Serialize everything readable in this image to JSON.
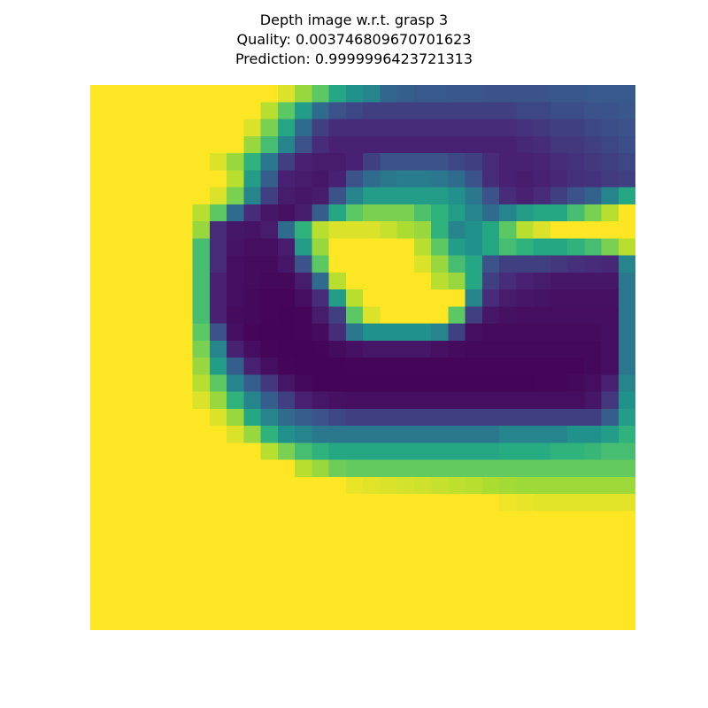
{
  "title": {
    "line1": "Depth image w.r.t. grasp 3",
    "line2": "Quality: 0.003746809670701623",
    "line3": "Prediction: 0.9999996423721313"
  },
  "chart_data": {
    "type": "heatmap",
    "title": "Depth image w.r.t. grasp 3\nQuality: 0.003746809670701623\nPrediction: 0.9999996423721313",
    "colormap": "viridis",
    "axes_visible": false,
    "grid": false,
    "rows": 32,
    "cols": 32,
    "value_scale": "normalized 0 (dark purple) to 1 (yellow), estimated from colors",
    "values": [
      [
        1,
        1,
        1,
        1,
        1,
        1,
        1,
        1,
        1,
        1,
        1,
        0.95,
        0.85,
        0.75,
        0.6,
        0.5,
        0.45,
        0.33,
        0.3,
        0.28,
        0.28,
        0.27,
        0.27,
        0.26,
        0.26,
        0.26,
        0.26,
        0.27,
        0.27,
        0.28,
        0.28,
        0.28
      ],
      [
        1,
        1,
        1,
        1,
        1,
        1,
        1,
        1,
        1,
        1,
        0.9,
        0.75,
        0.55,
        0.35,
        0.25,
        0.22,
        0.2,
        0.2,
        0.2,
        0.2,
        0.2,
        0.2,
        0.2,
        0.2,
        0.2,
        0.22,
        0.22,
        0.24,
        0.24,
        0.25,
        0.26,
        0.27
      ],
      [
        1,
        1,
        1,
        1,
        1,
        1,
        1,
        1,
        1,
        0.95,
        0.8,
        0.6,
        0.35,
        0.2,
        0.15,
        0.15,
        0.15,
        0.15,
        0.15,
        0.15,
        0.15,
        0.15,
        0.15,
        0.15,
        0.15,
        0.17,
        0.18,
        0.2,
        0.2,
        0.22,
        0.24,
        0.25
      ],
      [
        1,
        1,
        1,
        1,
        1,
        1,
        1,
        1,
        1,
        0.85,
        0.7,
        0.45,
        0.25,
        0.15,
        0.12,
        0.12,
        0.12,
        0.12,
        0.12,
        0.12,
        0.12,
        0.12,
        0.12,
        0.12,
        0.12,
        0.14,
        0.15,
        0.18,
        0.18,
        0.2,
        0.22,
        0.24
      ],
      [
        1,
        1,
        1,
        1,
        1,
        1,
        1,
        0.95,
        0.85,
        0.65,
        0.4,
        0.2,
        0.12,
        0.1,
        0.1,
        0.12,
        0.2,
        0.25,
        0.25,
        0.25,
        0.25,
        0.22,
        0.2,
        0.15,
        0.12,
        0.12,
        0.13,
        0.15,
        0.17,
        0.18,
        0.2,
        0.22
      ],
      [
        1,
        1,
        1,
        1,
        1,
        1,
        1,
        1,
        0.9,
        0.55,
        0.3,
        0.12,
        0.1,
        0.08,
        0.12,
        0.25,
        0.35,
        0.4,
        0.42,
        0.42,
        0.4,
        0.35,
        0.25,
        0.15,
        0.12,
        0.1,
        0.12,
        0.14,
        0.16,
        0.17,
        0.19,
        0.2
      ],
      [
        1,
        1,
        1,
        1,
        1,
        1,
        1,
        0.95,
        0.8,
        0.45,
        0.2,
        0.1,
        0.08,
        0.1,
        0.25,
        0.45,
        0.55,
        0.55,
        0.55,
        0.55,
        0.55,
        0.5,
        0.4,
        0.25,
        0.15,
        0.12,
        0.15,
        0.2,
        0.25,
        0.32,
        0.45,
        0.6
      ],
      [
        1,
        1,
        1,
        1,
        1,
        1,
        0.9,
        0.75,
        0.35,
        0.15,
        0.08,
        0.06,
        0.1,
        0.3,
        0.6,
        0.75,
        0.8,
        0.8,
        0.8,
        0.72,
        0.65,
        0.55,
        0.45,
        0.35,
        0.45,
        0.55,
        0.6,
        0.6,
        0.7,
        0.8,
        0.9,
        1
      ],
      [
        1,
        1,
        1,
        1,
        1,
        1,
        0.85,
        0.15,
        0.08,
        0.07,
        0.1,
        0.35,
        0.65,
        0.9,
        0.95,
        0.95,
        0.95,
        0.92,
        0.88,
        0.85,
        0.65,
        0.45,
        0.5,
        0.6,
        0.75,
        0.9,
        0.95,
        1,
        1,
        1,
        1,
        1
      ],
      [
        1,
        1,
        1,
        1,
        1,
        1,
        0.7,
        0.15,
        0.07,
        0.05,
        0.05,
        0.1,
        0.55,
        0.85,
        1,
        1,
        1,
        1,
        1,
        0.9,
        0.75,
        0.55,
        0.5,
        0.6,
        0.7,
        0.65,
        0.6,
        0.6,
        0.65,
        0.7,
        0.8,
        0.9
      ],
      [
        1,
        1,
        1,
        1,
        1,
        1,
        0.7,
        0.15,
        0.05,
        0.04,
        0.04,
        0.08,
        0.25,
        0.75,
        1,
        1,
        1,
        1,
        1,
        0.95,
        0.85,
        0.7,
        0.6,
        0.25,
        0.2,
        0.2,
        0.2,
        0.18,
        0.16,
        0.15,
        0.14,
        0.45
      ],
      [
        1,
        1,
        1,
        1,
        1,
        1,
        0.7,
        0.12,
        0.05,
        0.04,
        0.03,
        0.03,
        0.1,
        0.35,
        0.9,
        1,
        1,
        1,
        1,
        1,
        0.9,
        0.85,
        0.6,
        0.2,
        0.15,
        0.12,
        0.1,
        0.08,
        0.08,
        0.08,
        0.08,
        0.4
      ],
      [
        1,
        1,
        1,
        1,
        1,
        1,
        0.7,
        0.12,
        0.05,
        0.03,
        0.02,
        0.02,
        0.05,
        0.15,
        0.55,
        0.9,
        1,
        1,
        1,
        1,
        1,
        1,
        0.45,
        0.15,
        0.1,
        0.08,
        0.07,
        0.06,
        0.06,
        0.06,
        0.06,
        0.4
      ],
      [
        1,
        1,
        1,
        1,
        1,
        1,
        0.7,
        0.12,
        0.04,
        0.03,
        0.02,
        0.01,
        0.02,
        0.1,
        0.2,
        0.75,
        0.95,
        1,
        1,
        1,
        1,
        0.75,
        0.2,
        0.08,
        0.06,
        0.05,
        0.05,
        0.05,
        0.05,
        0.05,
        0.05,
        0.4
      ],
      [
        1,
        1,
        1,
        1,
        1,
        1,
        0.75,
        0.25,
        0.05,
        0.02,
        0.01,
        0.01,
        0.02,
        0.04,
        0.15,
        0.4,
        0.5,
        0.5,
        0.5,
        0.5,
        0.45,
        0.2,
        0.05,
        0.04,
        0.04,
        0.04,
        0.04,
        0.04,
        0.04,
        0.04,
        0.05,
        0.4
      ],
      [
        1,
        1,
        1,
        1,
        1,
        1,
        0.8,
        0.45,
        0.12,
        0.05,
        0.02,
        0.01,
        0.01,
        0.02,
        0.04,
        0.06,
        0.08,
        0.08,
        0.08,
        0.08,
        0.06,
        0.04,
        0.03,
        0.03,
        0.03,
        0.03,
        0.03,
        0.03,
        0.03,
        0.03,
        0.05,
        0.4
      ],
      [
        1,
        1,
        1,
        1,
        1,
        1,
        0.85,
        0.55,
        0.3,
        0.12,
        0.05,
        0.02,
        0.01,
        0.01,
        0.01,
        0.02,
        0.02,
        0.02,
        0.02,
        0.02,
        0.02,
        0.02,
        0.02,
        0.02,
        0.02,
        0.02,
        0.02,
        0.02,
        0.02,
        0.03,
        0.05,
        0.4
      ],
      [
        1,
        1,
        1,
        1,
        1,
        1,
        0.9,
        0.75,
        0.45,
        0.3,
        0.18,
        0.08,
        0.03,
        0.01,
        0.01,
        0.01,
        0.01,
        0.01,
        0.01,
        0.01,
        0.01,
        0.01,
        0.01,
        0.01,
        0.01,
        0.01,
        0.02,
        0.02,
        0.03,
        0.05,
        0.12,
        0.45
      ],
      [
        1,
        1,
        1,
        1,
        1,
        1,
        0.95,
        0.85,
        0.65,
        0.45,
        0.3,
        0.2,
        0.12,
        0.08,
        0.06,
        0.05,
        0.05,
        0.05,
        0.05,
        0.05,
        0.05,
        0.05,
        0.05,
        0.05,
        0.05,
        0.05,
        0.05,
        0.05,
        0.05,
        0.08,
        0.18,
        0.5
      ],
      [
        1,
        1,
        1,
        1,
        1,
        1,
        1,
        0.95,
        0.85,
        0.6,
        0.45,
        0.35,
        0.3,
        0.25,
        0.22,
        0.2,
        0.2,
        0.2,
        0.2,
        0.2,
        0.2,
        0.2,
        0.2,
        0.2,
        0.2,
        0.2,
        0.2,
        0.2,
        0.2,
        0.2,
        0.3,
        0.55
      ],
      [
        1,
        1,
        1,
        1,
        1,
        1,
        1,
        1,
        0.95,
        0.85,
        0.65,
        0.5,
        0.45,
        0.4,
        0.4,
        0.4,
        0.4,
        0.4,
        0.4,
        0.4,
        0.4,
        0.4,
        0.4,
        0.4,
        0.45,
        0.45,
        0.45,
        0.45,
        0.5,
        0.5,
        0.55,
        0.65
      ],
      [
        1,
        1,
        1,
        1,
        1,
        1,
        1,
        1,
        1,
        1,
        0.9,
        0.8,
        0.7,
        0.65,
        0.6,
        0.6,
        0.6,
        0.6,
        0.6,
        0.6,
        0.6,
        0.6,
        0.6,
        0.6,
        0.62,
        0.62,
        0.62,
        0.65,
        0.65,
        0.67,
        0.7,
        0.7
      ],
      [
        1,
        1,
        1,
        1,
        1,
        1,
        1,
        1,
        1,
        1,
        1,
        1,
        0.9,
        0.85,
        0.78,
        0.76,
        0.76,
        0.76,
        0.76,
        0.76,
        0.76,
        0.76,
        0.76,
        0.76,
        0.76,
        0.76,
        0.76,
        0.76,
        0.76,
        0.76,
        0.76,
        0.76
      ],
      [
        1,
        1,
        1,
        1,
        1,
        1,
        1,
        1,
        1,
        1,
        1,
        1,
        1,
        1,
        1,
        0.97,
        0.96,
        0.95,
        0.94,
        0.93,
        0.92,
        0.91,
        0.9,
        0.88,
        0.87,
        0.86,
        0.86,
        0.86,
        0.86,
        0.86,
        0.86,
        0.86
      ],
      [
        1,
        1,
        1,
        1,
        1,
        1,
        1,
        1,
        1,
        1,
        1,
        1,
        1,
        1,
        1,
        1,
        1,
        1,
        1,
        1,
        1,
        1,
        1,
        1,
        0.98,
        0.97,
        0.96,
        0.96,
        0.96,
        0.96,
        0.96,
        0.96
      ],
      [
        1,
        1,
        1,
        1,
        1,
        1,
        1,
        1,
        1,
        1,
        1,
        1,
        1,
        1,
        1,
        1,
        1,
        1,
        1,
        1,
        1,
        1,
        1,
        1,
        1,
        1,
        1,
        1,
        1,
        1,
        1,
        1
      ],
      [
        1,
        1,
        1,
        1,
        1,
        1,
        1,
        1,
        1,
        1,
        1,
        1,
        1,
        1,
        1,
        1,
        1,
        1,
        1,
        1,
        1,
        1,
        1,
        1,
        1,
        1,
        1,
        1,
        1,
        1,
        1,
        1
      ],
      [
        1,
        1,
        1,
        1,
        1,
        1,
        1,
        1,
        1,
        1,
        1,
        1,
        1,
        1,
        1,
        1,
        1,
        1,
        1,
        1,
        1,
        1,
        1,
        1,
        1,
        1,
        1,
        1,
        1,
        1,
        1,
        1
      ],
      [
        1,
        1,
        1,
        1,
        1,
        1,
        1,
        1,
        1,
        1,
        1,
        1,
        1,
        1,
        1,
        1,
        1,
        1,
        1,
        1,
        1,
        1,
        1,
        1,
        1,
        1,
        1,
        1,
        1,
        1,
        1,
        1
      ],
      [
        1,
        1,
        1,
        1,
        1,
        1,
        1,
        1,
        1,
        1,
        1,
        1,
        1,
        1,
        1,
        1,
        1,
        1,
        1,
        1,
        1,
        1,
        1,
        1,
        1,
        1,
        1,
        1,
        1,
        1,
        1,
        1
      ],
      [
        1,
        1,
        1,
        1,
        1,
        1,
        1,
        1,
        1,
        1,
        1,
        1,
        1,
        1,
        1,
        1,
        1,
        1,
        1,
        1,
        1,
        1,
        1,
        1,
        1,
        1,
        1,
        1,
        1,
        1,
        1,
        1
      ],
      [
        1,
        1,
        1,
        1,
        1,
        1,
        1,
        1,
        1,
        1,
        1,
        1,
        1,
        1,
        1,
        1,
        1,
        1,
        1,
        1,
        1,
        1,
        1,
        1,
        1,
        1,
        1,
        1,
        1,
        1,
        1,
        1
      ]
    ]
  }
}
